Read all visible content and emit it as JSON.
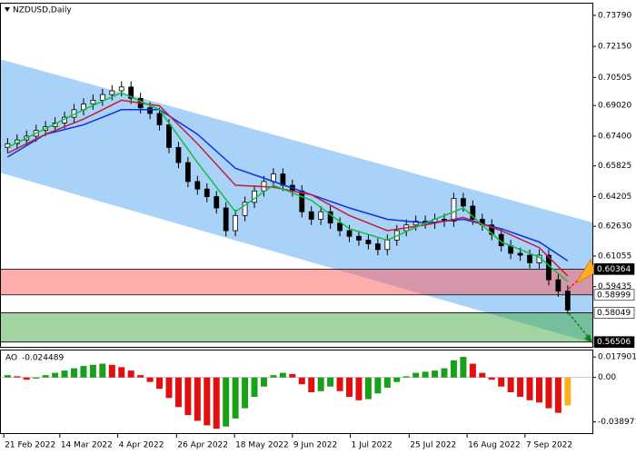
{
  "chart_data": [
    {
      "type": "candlestick",
      "title": "NZDUSD,Daily",
      "xlim": [
        -0.8,
        61.6
      ],
      "xticks": [
        {
          "value": -0.4,
          "label": "21 Feb 2022"
        },
        {
          "value": 5.5,
          "label": "14 Mar 2022"
        },
        {
          "value": 11.6,
          "label": "4 Apr 2022"
        },
        {
          "value": 17.8,
          "label": "26 Apr 2022"
        },
        {
          "value": 23.9,
          "label": "18 May 2022"
        },
        {
          "value": 30,
          "label": "9 Jun 2022"
        },
        {
          "value": 36.1,
          "label": "1 Jul 2022"
        },
        {
          "value": 42.3,
          "label": "25 Jul 2022"
        },
        {
          "value": 48.4,
          "label": "16 Aug 2022"
        },
        {
          "value": 54.5,
          "label": "7 Sep 2022"
        }
      ],
      "ylim": [
        0.5625,
        0.7446
      ],
      "yticks": [
        {
          "value": 0.7379,
          "label": "0.73790"
        },
        {
          "value": 0.7215,
          "label": "0.72150"
        },
        {
          "value": 0.70505,
          "label": "0.70505"
        },
        {
          "value": 0.6902,
          "label": "0.69020"
        },
        {
          "value": 0.674,
          "label": "0.67400"
        },
        {
          "value": 0.65825,
          "label": "0.65825"
        },
        {
          "value": 0.64205,
          "label": "0.64205"
        },
        {
          "value": 0.6263,
          "label": "0.62630"
        },
        {
          "value": 0.61055,
          "label": "0.61055"
        },
        {
          "value": 0.59435,
          "label": "0.59435"
        }
      ],
      "bull_color": "#ffffff",
      "bear_color": "#000000",
      "open": [
        0.668,
        0.67,
        0.672,
        0.674,
        0.677,
        0.679,
        0.681,
        0.684,
        0.688,
        0.691,
        0.693,
        0.696,
        0.698,
        0.7,
        0.694,
        0.689,
        0.686,
        0.68,
        0.668,
        0.66,
        0.65,
        0.646,
        0.642,
        0.636,
        0.624,
        0.632,
        0.639,
        0.645,
        0.65,
        0.654,
        0.648,
        0.645,
        0.634,
        0.63,
        0.634,
        0.628,
        0.624,
        0.621,
        0.619,
        0.617,
        0.614,
        0.619,
        0.624,
        0.627,
        0.629,
        0.628,
        0.63,
        0.629,
        0.641,
        0.637,
        0.63,
        0.627,
        0.622,
        0.616,
        0.612,
        0.611,
        0.607,
        0.611,
        0.598,
        0.592
      ],
      "high": [
        0.673,
        0.675,
        0.677,
        0.68,
        0.682,
        0.684,
        0.687,
        0.691,
        0.694,
        0.696,
        0.699,
        0.701,
        0.703,
        0.703,
        0.697,
        0.692,
        0.689,
        0.683,
        0.671,
        0.663,
        0.653,
        0.649,
        0.645,
        0.639,
        0.635,
        0.642,
        0.648,
        0.653,
        0.657,
        0.657,
        0.651,
        0.648,
        0.637,
        0.637,
        0.637,
        0.631,
        0.627,
        0.624,
        0.622,
        0.62,
        0.622,
        0.627,
        0.63,
        0.632,
        0.632,
        0.633,
        0.633,
        0.644,
        0.644,
        0.64,
        0.633,
        0.63,
        0.625,
        0.619,
        0.615,
        0.614,
        0.614,
        0.614,
        0.601,
        0.595
      ],
      "low": [
        0.665,
        0.667,
        0.669,
        0.671,
        0.674,
        0.676,
        0.678,
        0.681,
        0.685,
        0.688,
        0.69,
        0.693,
        0.695,
        0.691,
        0.686,
        0.683,
        0.677,
        0.665,
        0.657,
        0.647,
        0.643,
        0.639,
        0.633,
        0.621,
        0.621,
        0.629,
        0.636,
        0.642,
        0.647,
        0.645,
        0.642,
        0.631,
        0.627,
        0.627,
        0.625,
        0.621,
        0.618,
        0.616,
        0.614,
        0.611,
        0.611,
        0.616,
        0.621,
        0.624,
        0.625,
        0.625,
        0.626,
        0.626,
        0.634,
        0.627,
        0.624,
        0.619,
        0.613,
        0.609,
        0.608,
        0.604,
        0.604,
        0.595,
        0.589,
        0.58
      ],
      "close": [
        0.67,
        0.672,
        0.674,
        0.677,
        0.679,
        0.681,
        0.684,
        0.688,
        0.691,
        0.693,
        0.696,
        0.698,
        0.7,
        0.694,
        0.689,
        0.686,
        0.68,
        0.668,
        0.66,
        0.65,
        0.646,
        0.642,
        0.636,
        0.624,
        0.632,
        0.639,
        0.645,
        0.65,
        0.654,
        0.648,
        0.645,
        0.634,
        0.63,
        0.634,
        0.628,
        0.624,
        0.621,
        0.619,
        0.617,
        0.614,
        0.619,
        0.624,
        0.627,
        0.629,
        0.628,
        0.63,
        0.629,
        0.641,
        0.637,
        0.63,
        0.627,
        0.622,
        0.616,
        0.612,
        0.611,
        0.607,
        0.611,
        0.598,
        0.592,
        0.582
      ],
      "channel": {
        "x": [
          -0.8,
          61.6
        ],
        "upper": [
          0.7147,
          0.6283
        ],
        "lower": [
          0.6547,
          0.5645
        ],
        "color": "#a8d2f8"
      },
      "series": [
        {
          "color": "#1030e0",
          "x": [
            0,
            4,
            8,
            12,
            16,
            20,
            24,
            28,
            32,
            36,
            40,
            44,
            48,
            52,
            56,
            59
          ],
          "values": [
            0.663,
            0.675,
            0.68,
            0.688,
            0.688,
            0.675,
            0.657,
            0.65,
            0.643,
            0.636,
            0.63,
            0.628,
            0.63,
            0.625,
            0.618,
            0.608
          ]
        },
        {
          "color": "#c0203a",
          "x": [
            0,
            4,
            8,
            12,
            16,
            20,
            24,
            28,
            32,
            36,
            40,
            44,
            48,
            52,
            56,
            59
          ],
          "values": [
            0.665,
            0.675,
            0.683,
            0.693,
            0.69,
            0.67,
            0.648,
            0.647,
            0.643,
            0.632,
            0.624,
            0.627,
            0.631,
            0.624,
            0.615,
            0.6
          ]
        },
        {
          "color": "#10c040",
          "x": [
            0,
            4,
            8,
            12,
            16,
            20,
            24,
            28,
            32,
            36,
            40,
            44,
            48,
            52,
            56,
            59
          ],
          "values": [
            0.668,
            0.678,
            0.688,
            0.697,
            0.688,
            0.66,
            0.634,
            0.648,
            0.64,
            0.625,
            0.619,
            0.628,
            0.636,
            0.618,
            0.61,
            0.597
          ]
        }
      ],
      "zones": [
        {
          "from": 0.60364,
          "to": 0.58999,
          "color": "rgba(255,90,90,0.5)"
        },
        {
          "from": 0.58049,
          "to": 0.56506,
          "color": "rgba(70,170,70,0.5)"
        }
      ]
    },
    {
      "type": "histogram",
      "title": "AO",
      "ylim": [
        -0.0496,
        0.0244
      ],
      "yticks": [
        0.017901,
        {
          "value": 0,
          "label": "0.00"
        },
        -0.038971
      ],
      "up_color": "#18a018",
      "down_color": "#e01010",
      "last_color": "#ffb020",
      "values": [
        0.002,
        0.001,
        -0.002,
        -0.001,
        0.002,
        0.004,
        0.006,
        0.008,
        0.01,
        0.011,
        0.012,
        0.011,
        0.009,
        0.006,
        0.002,
        -0.004,
        -0.01,
        -0.018,
        -0.026,
        -0.033,
        -0.038,
        -0.042,
        -0.045,
        -0.043,
        -0.036,
        -0.027,
        -0.017,
        -0.008,
        0.002,
        0.004,
        0.003,
        -0.006,
        -0.013,
        -0.012,
        -0.008,
        -0.012,
        -0.017,
        -0.02,
        -0.019,
        -0.014,
        -0.009,
        -0.004,
        0.001,
        0.004,
        0.005,
        0.006,
        0.008,
        0.015,
        0.018,
        0.012,
        0.004,
        -0.002,
        -0.008,
        -0.013,
        -0.017,
        -0.02,
        -0.022,
        -0.027,
        -0.031,
        -0.024489
      ]
    }
  ]
}
